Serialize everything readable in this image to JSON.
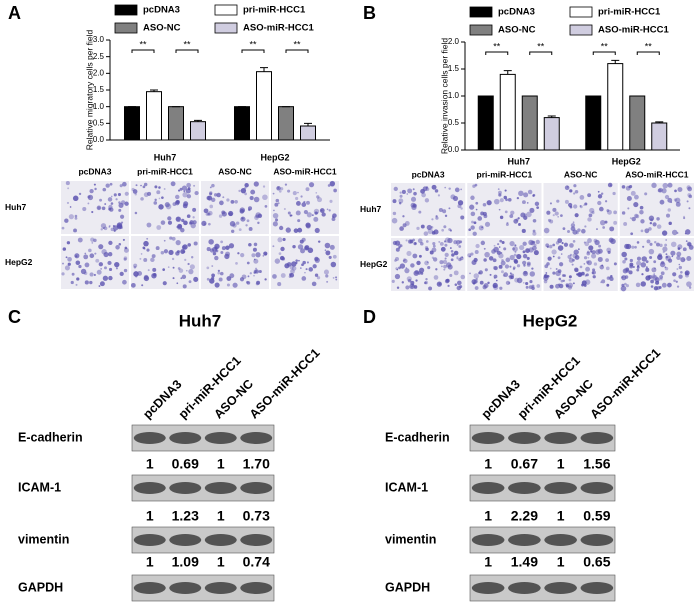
{
  "chart_data": [
    {
      "type": "bar",
      "label": "A",
      "ylabel": "Relative migratory cells per field",
      "categories": [
        "Huh7",
        "HepG2"
      ],
      "series": [
        {
          "name": "pcDNA3",
          "color": "#000000",
          "values": [
            1,
            1
          ],
          "errors": [
            0,
            0
          ]
        },
        {
          "name": "pri-miR-HCC1",
          "color": "#ffffff",
          "values": [
            1.45,
            2.05
          ],
          "errors": [
            0.05,
            0.12
          ]
        },
        {
          "name": "ASO-NC",
          "color": "#808080",
          "values": [
            1,
            1
          ],
          "errors": [
            0,
            0
          ]
        },
        {
          "name": "ASO-miR-HCC1",
          "color": "#d0cde0",
          "values": [
            0.55,
            0.42
          ],
          "errors": [
            0.04,
            0.08
          ]
        }
      ],
      "ylim": [
        0,
        3
      ],
      "yticks": [
        {
          "value": 0,
          "label": "0.0"
        },
        {
          "value": 0.5,
          "label": "0.5"
        },
        {
          "value": 1,
          "label": "1.0"
        },
        {
          "value": 1.5,
          "label": "1.5"
        },
        {
          "value": 2,
          "label": "2.0"
        },
        {
          "value": 2.5,
          "label": "2.5"
        },
        {
          "value": 3,
          "label": "3.0"
        }
      ],
      "significance": [
        "**",
        "**",
        "**",
        "**"
      ]
    },
    {
      "type": "bar",
      "label": "B",
      "ylabel": "Relative invasion cells per field",
      "categories": [
        "Huh7",
        "HepG2"
      ],
      "series": [
        {
          "name": "pcDNA3",
          "color": "#000000",
          "values": [
            1,
            1
          ],
          "errors": [
            0,
            0
          ]
        },
        {
          "name": "pri-miR-HCC1",
          "color": "#ffffff",
          "values": [
            1.4,
            1.6
          ],
          "errors": [
            0.07,
            0.06
          ]
        },
        {
          "name": "ASO-NC",
          "color": "#808080",
          "values": [
            1,
            1
          ],
          "errors": [
            0,
            0
          ]
        },
        {
          "name": "ASO-miR-HCC1",
          "color": "#d0cde0",
          "values": [
            0.6,
            0.5
          ],
          "errors": [
            0.03,
            0.02
          ]
        }
      ],
      "ylim": [
        0,
        2
      ],
      "yticks": [
        {
          "value": 0,
          "label": "0.0"
        },
        {
          "value": 0.5,
          "label": "0.5"
        },
        {
          "value": 1,
          "label": "1.0"
        },
        {
          "value": 1.5,
          "label": "1.5"
        },
        {
          "value": 2,
          "label": "2.0"
        }
      ],
      "significance": [
        "**",
        "**",
        "**",
        "**"
      ]
    }
  ],
  "micrographs": [
    {
      "columns": [
        "pcDNA3",
        "pri-miR-HCC1",
        "ASO-NC",
        "ASO-miR-HCC1"
      ],
      "rows": [
        "Huh7",
        "HepG2"
      ]
    },
    {
      "columns": [
        "pcDNA3",
        "pri-miR-HCC1",
        "ASO-NC",
        "ASO-miR-HCC1"
      ],
      "rows": [
        "Huh7",
        "HepG2"
      ]
    }
  ],
  "blots": [
    {
      "label": "C",
      "title": "Huh7",
      "lanes": [
        "pcDNA3",
        "pri-miR-HCC1",
        "ASO-NC",
        "ASO-miR-HCC1"
      ],
      "proteins": [
        {
          "name": "E-cadherin",
          "quantification": [
            "1",
            "0.69",
            "1",
            "1.70"
          ]
        },
        {
          "name": "ICAM-1",
          "quantification": [
            "1",
            "1.23",
            "1",
            "0.73"
          ]
        },
        {
          "name": "vimentin",
          "quantification": [
            "1",
            "1.09",
            "1",
            "0.74"
          ]
        },
        {
          "name": "GAPDH"
        }
      ]
    },
    {
      "label": "D",
      "title": "HepG2",
      "lanes": [
        "pcDNA3",
        "pri-miR-HCC1",
        "ASO-NC",
        "ASO-miR-HCC1"
      ],
      "proteins": [
        {
          "name": "E-cadherin",
          "quantification": [
            "1",
            "0.67",
            "1",
            "1.56"
          ]
        },
        {
          "name": "ICAM-1",
          "quantification": [
            "1",
            "2.29",
            "1",
            "0.59"
          ]
        },
        {
          "name": "vimentin",
          "quantification": [
            "1",
            "1.49",
            "1",
            "0.65"
          ]
        },
        {
          "name": "GAPDH"
        }
      ]
    }
  ]
}
